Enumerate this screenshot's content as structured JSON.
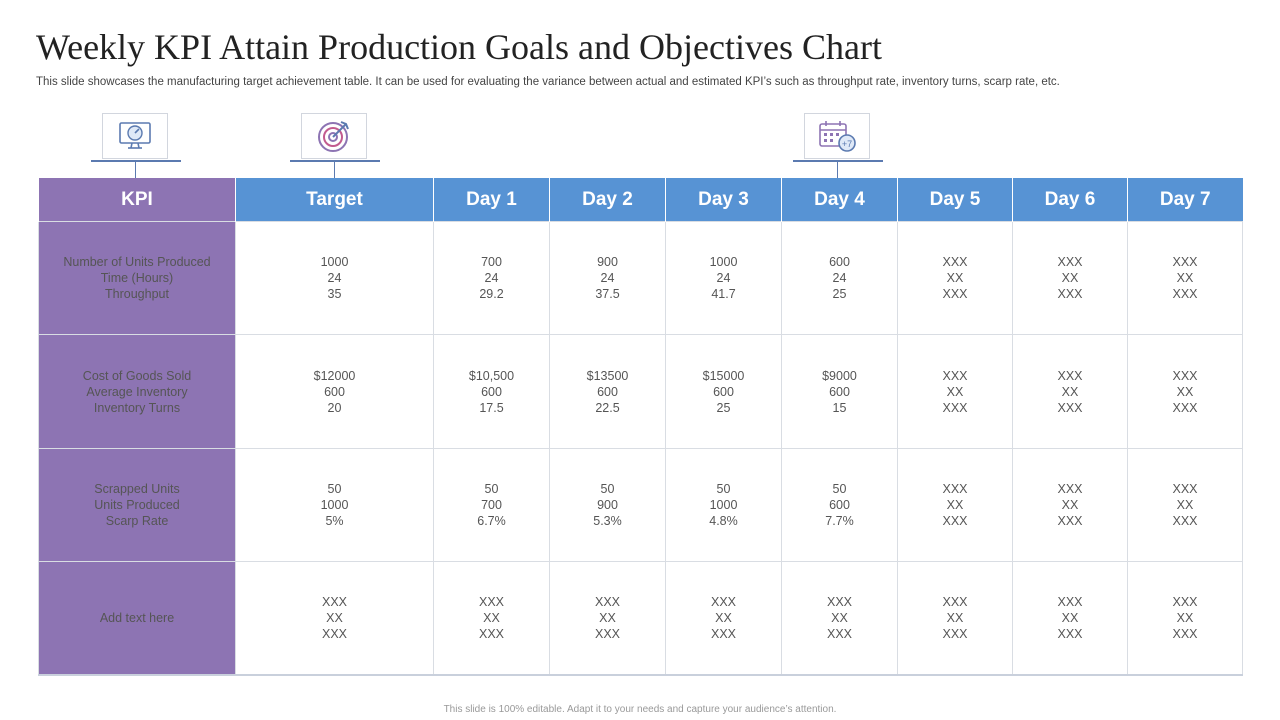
{
  "title": "Weekly KPI Attain Production Goals and Objectives Chart",
  "subtitle": "This slide showcases the manufacturing target achievement table. It can be used for evaluating the variance between actual and estimated KPI’s such as throughput rate, inventory turns, scarp rate, etc.",
  "icons": [
    "speedometer-monitor-icon",
    "target-arrow-icon",
    "calendar-plus-seven-icon"
  ],
  "colors": {
    "kpi_column": "#8d74b3",
    "header_blue": "#5793d4"
  },
  "table": {
    "headers": [
      "KPI",
      "Target",
      "Day 1",
      "Day 2",
      "Day 3",
      "Day 4",
      "Day 5",
      "Day 6",
      "Day 7"
    ],
    "rows": [
      {
        "label": [
          "Number  of Units Produced",
          "Time (Hours)",
          "Throughput"
        ],
        "cells": [
          [
            "1000",
            "24",
            "35"
          ],
          [
            "700",
            "24",
            "29.2"
          ],
          [
            "900",
            "24",
            "37.5"
          ],
          [
            "1000",
            "24",
            "41.7"
          ],
          [
            "600",
            "24",
            "25"
          ],
          [
            "XXX",
            "XX",
            "XXX"
          ],
          [
            "XXX",
            "XX",
            "XXX"
          ],
          [
            "XXX",
            "XX",
            "XXX"
          ]
        ]
      },
      {
        "label": [
          "Cost of Goods Sold",
          "Average  Inventory",
          "Inventory  Turns"
        ],
        "cells": [
          [
            "$12000",
            "600",
            "20"
          ],
          [
            "$10,500",
            "600",
            "17.5"
          ],
          [
            "$13500",
            "600",
            "22.5"
          ],
          [
            "$15000",
            "600",
            "25"
          ],
          [
            "$9000",
            "600",
            "15"
          ],
          [
            "XXX",
            "XX",
            "XXX"
          ],
          [
            "XXX",
            "XX",
            "XXX"
          ],
          [
            "XXX",
            "XX",
            "XXX"
          ]
        ]
      },
      {
        "label": [
          "Scrapped Units",
          "Units Produced",
          "Scarp Rate"
        ],
        "cells": [
          [
            "50",
            "1000",
            "5%"
          ],
          [
            "50",
            "700",
            "6.7%"
          ],
          [
            "50",
            "900",
            "5.3%"
          ],
          [
            "50",
            "1000",
            "4.8%"
          ],
          [
            "50",
            "600",
            "7.7%"
          ],
          [
            "XXX",
            "XX",
            "XXX"
          ],
          [
            "XXX",
            "XX",
            "XXX"
          ],
          [
            "XXX",
            "XX",
            "XXX"
          ]
        ]
      },
      {
        "label": [
          "Add text here"
        ],
        "cells": [
          [
            "XXX",
            "XX",
            "XXX"
          ],
          [
            "XXX",
            "XX",
            "XXX"
          ],
          [
            "XXX",
            "XX",
            "XXX"
          ],
          [
            "XXX",
            "XX",
            "XXX"
          ],
          [
            "XXX",
            "XX",
            "XXX"
          ],
          [
            "XXX",
            "XX",
            "XXX"
          ],
          [
            "XXX",
            "XX",
            "XXX"
          ],
          [
            "XXX",
            "XX",
            "XXX"
          ]
        ]
      }
    ]
  },
  "footer": "This slide is 100% editable. Adapt it to your needs and capture your audience’s attention."
}
